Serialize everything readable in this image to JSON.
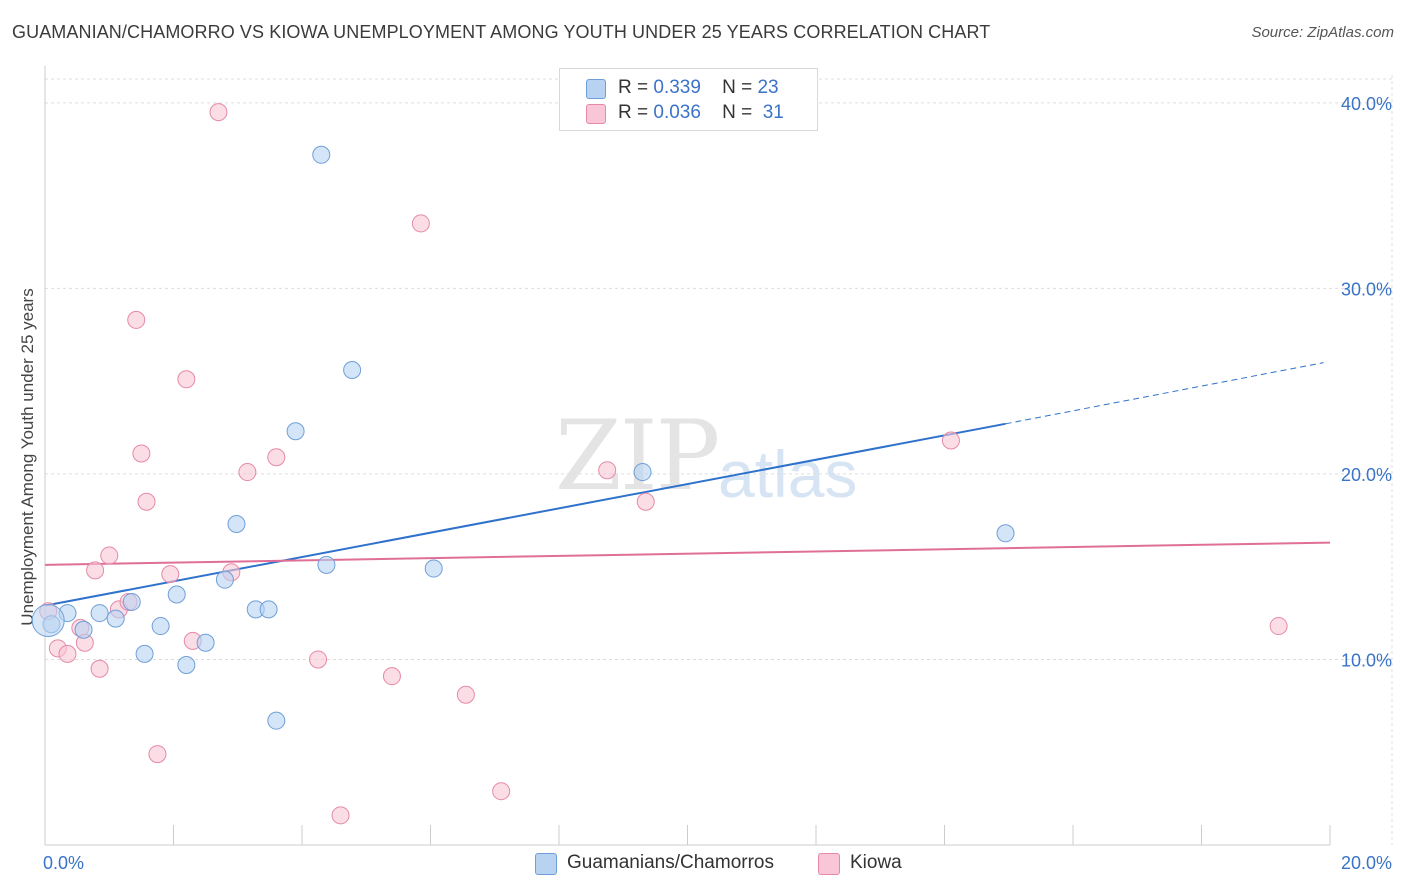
{
  "title": "GUAMANIAN/CHAMORRO VS KIOWA UNEMPLOYMENT AMONG YOUTH UNDER 25 YEARS CORRELATION CHART",
  "source": "Source: ZipAtlas.com",
  "watermark": {
    "zip": "ZIP",
    "atlas": "atlas"
  },
  "legend": {
    "rows": [
      {
        "r_label": "R =",
        "r_value": "0.339",
        "n_label": "N =",
        "n_value": "23"
      },
      {
        "r_label": "R =",
        "r_value": "0.036",
        "n_label": "N =",
        "n_value": "31"
      }
    ]
  },
  "colors": {
    "blue_fill": "#b8d3f2",
    "blue_stroke": "#6f9fd8",
    "blue_line": "#2f72cc",
    "pink_fill": "#f8c6d6",
    "pink_stroke": "#e68aa7",
    "pink_line": "#e06f98",
    "tick_label": "#3a73c8",
    "grid": "#dddddd"
  },
  "chart_data": {
    "type": "scatter",
    "title": "GUAMANIAN/CHAMORRO VS KIOWA UNEMPLOYMENT AMONG YOUTH UNDER 25 YEARS CORRELATION CHART",
    "xlabel": "",
    "ylabel": "Unemployment Among Youth under 25 years",
    "xlim": [
      0,
      20
    ],
    "ylim": [
      0,
      41.5
    ],
    "x_tick_labels": [
      "0.0%",
      "20.0%"
    ],
    "y_ticks": [
      10,
      20,
      30,
      40
    ],
    "y_tick_labels": [
      "10.0%",
      "20.0%",
      "30.0%",
      "40.0%"
    ],
    "grid": true,
    "legend_position": "top-center",
    "series": [
      {
        "name": "Guamanians/Chamorros",
        "r": 0.339,
        "n": 23,
        "points": [
          [
            0.1,
            11.9
          ],
          [
            0.35,
            12.5
          ],
          [
            0.6,
            11.6
          ],
          [
            0.85,
            12.5
          ],
          [
            1.1,
            12.2
          ],
          [
            1.35,
            13.1
          ],
          [
            1.55,
            10.3
          ],
          [
            1.8,
            11.8
          ],
          [
            2.05,
            13.5
          ],
          [
            2.2,
            9.7
          ],
          [
            2.5,
            10.9
          ],
          [
            2.8,
            14.3
          ],
          [
            2.98,
            17.3
          ],
          [
            3.28,
            12.7
          ],
          [
            3.48,
            12.7
          ],
          [
            3.6,
            6.7
          ],
          [
            3.9,
            22.3
          ],
          [
            4.3,
            37.2
          ],
          [
            4.38,
            15.1
          ],
          [
            4.78,
            25.6
          ],
          [
            6.05,
            14.9
          ],
          [
            9.3,
            20.1
          ],
          [
            14.95,
            16.8
          ]
        ],
        "trend": {
          "x1": 0,
          "y1": 12.9,
          "x2": 14.95,
          "y2": 22.7,
          "dashed_x2": 19.9,
          "dashed_y2": 26.0
        }
      },
      {
        "name": "Kiowa",
        "r": 0.036,
        "n": 31,
        "points": [
          [
            0.05,
            12.6
          ],
          [
            0.2,
            10.6
          ],
          [
            0.35,
            10.3
          ],
          [
            0.55,
            11.7
          ],
          [
            0.62,
            10.9
          ],
          [
            0.78,
            14.8
          ],
          [
            0.85,
            9.5
          ],
          [
            1.0,
            15.6
          ],
          [
            1.15,
            12.7
          ],
          [
            1.3,
            13.1
          ],
          [
            1.42,
            28.3
          ],
          [
            1.5,
            21.1
          ],
          [
            1.58,
            18.5
          ],
          [
            1.75,
            4.9
          ],
          [
            1.95,
            14.6
          ],
          [
            2.2,
            25.1
          ],
          [
            2.3,
            11.0
          ],
          [
            2.7,
            39.5
          ],
          [
            2.9,
            14.7
          ],
          [
            3.15,
            20.1
          ],
          [
            3.6,
            20.9
          ],
          [
            4.25,
            10.0
          ],
          [
            4.6,
            1.6
          ],
          [
            5.4,
            9.1
          ],
          [
            5.85,
            33.5
          ],
          [
            6.55,
            8.1
          ],
          [
            7.1,
            2.9
          ],
          [
            8.75,
            20.2
          ],
          [
            9.35,
            18.5
          ],
          [
            14.1,
            21.8
          ],
          [
            19.2,
            11.8
          ]
        ],
        "trend": {
          "x1": 0,
          "y1": 15.1,
          "x2": 20,
          "y2": 16.3
        }
      }
    ]
  },
  "bottom_legend": [
    {
      "label": "Guamanians/Chamorros"
    },
    {
      "label": "Kiowa"
    }
  ]
}
